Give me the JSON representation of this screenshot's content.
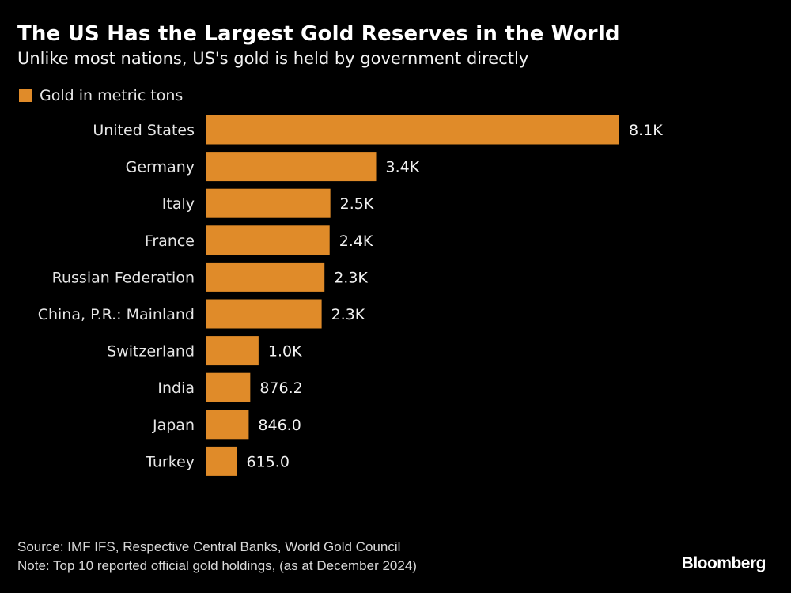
{
  "chart_data": {
    "type": "bar",
    "orientation": "horizontal",
    "title": "The US Has the Largest Gold Reserves in the World",
    "subtitle": "Unlike most nations, US's gold is held by government directly",
    "legend": [
      {
        "name": "Gold in metric tons",
        "color": "#e08b29"
      }
    ],
    "legend_placement": "top-left",
    "grid": false,
    "categories": [
      "United States",
      "Germany",
      "Italy",
      "France",
      "Russian Federation",
      "China, P.R.: Mainland",
      "Switzerland",
      "India",
      "Japan",
      "Turkey"
    ],
    "series": [
      {
        "name": "Gold in metric tons",
        "color": "#e08b29",
        "values": [
          8133.5,
          3351.5,
          2451.8,
          2437.0,
          2335.9,
          2280.0,
          1040.0,
          876.2,
          846.0,
          615.0
        ],
        "data_labels": [
          "8.1K",
          "3.4K",
          "2.5K",
          "2.4K",
          "2.3K",
          "2.3K",
          "1.0K",
          "876.2",
          "846.0",
          "615.0"
        ]
      }
    ],
    "xlim": [
      0,
      8133.5
    ]
  },
  "footer": {
    "source": "Source: IMF IFS, Respective Central Banks, World Gold Council",
    "note": "Note: Top 10 reported official gold holdings, (as at December 2024)",
    "logo": "Bloomberg"
  }
}
